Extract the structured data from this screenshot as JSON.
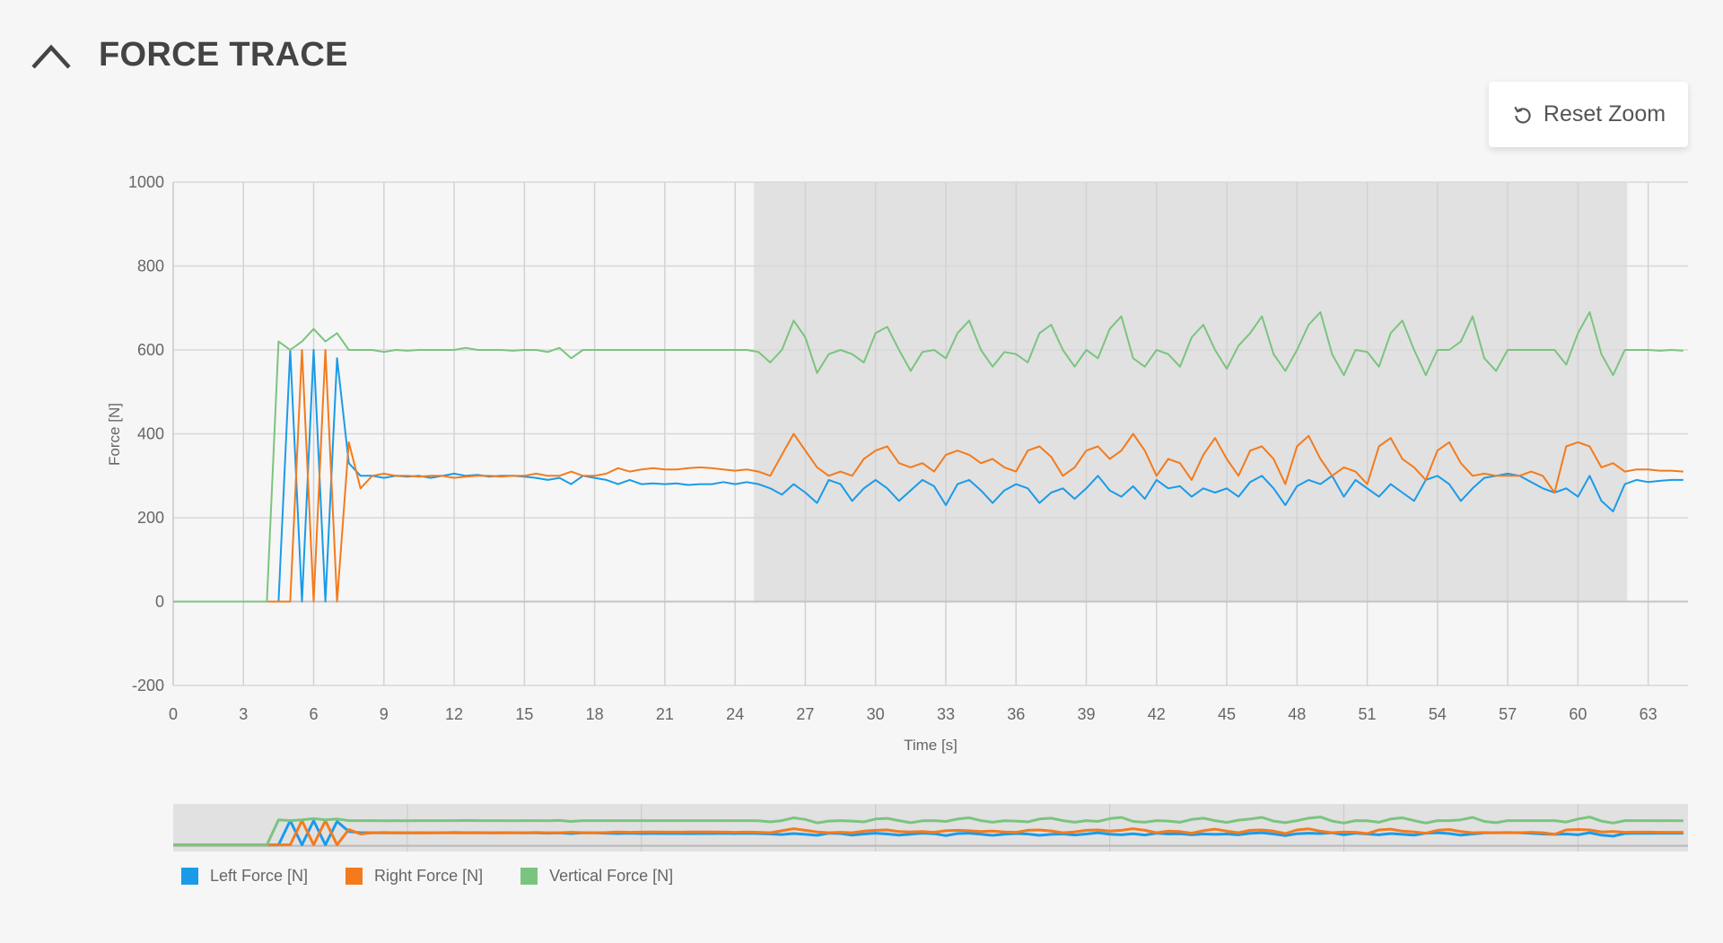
{
  "header": {
    "title": "FORCE TRACE",
    "collapse_icon": "chevron-up-icon"
  },
  "toolbar": {
    "reset_zoom_label": "Reset Zoom",
    "reset_icon": "undo-icon"
  },
  "colors": {
    "left": "#1a9be8",
    "right": "#f37b1d",
    "vertical": "#7bc47f",
    "selection": "#e1e1e1"
  },
  "chart_data": {
    "type": "line",
    "title": "FORCE TRACE",
    "xlabel": "Time [s]",
    "ylabel": "Force [N]",
    "xlim": [
      0,
      64.7
    ],
    "ylim": [
      -200,
      1000
    ],
    "xticks": [
      "0",
      "3",
      "6",
      "9",
      "12",
      "15",
      "18",
      "21",
      "24",
      "27",
      "30",
      "33",
      "36",
      "39",
      "42",
      "45",
      "48",
      "51",
      "54",
      "57",
      "60",
      "63"
    ],
    "yticks": [
      "1000",
      "800",
      "600",
      "400",
      "200",
      "0",
      "-200"
    ],
    "grid": true,
    "selection_range": [
      24.8,
      62.1
    ],
    "legend_position": "bottom-left",
    "x_start": 0,
    "x_step": 0.5,
    "series": [
      {
        "name": "Left Force [N]",
        "values": [
          0,
          0,
          0,
          0,
          0,
          0,
          0,
          0,
          0,
          0,
          600,
          0,
          600,
          0,
          580,
          330,
          300,
          300,
          295,
          300,
          298,
          300,
          295,
          300,
          305,
          300,
          302,
          298,
          300,
          300,
          298,
          295,
          290,
          295,
          280,
          300,
          295,
          290,
          280,
          290,
          280,
          282,
          280,
          282,
          278,
          280,
          280,
          285,
          280,
          285,
          280,
          270,
          255,
          280,
          260,
          235,
          290,
          280,
          240,
          270,
          290,
          270,
          240,
          265,
          290,
          275,
          230,
          280,
          290,
          265,
          235,
          265,
          280,
          270,
          235,
          260,
          270,
          245,
          270,
          300,
          265,
          250,
          275,
          245,
          290,
          270,
          275,
          250,
          270,
          260,
          270,
          250,
          285,
          300,
          270,
          230,
          275,
          290,
          280,
          300,
          250,
          290,
          270,
          250,
          280,
          260,
          240,
          290,
          300,
          280,
          240,
          270,
          295,
          300,
          305,
          300,
          285,
          270,
          260,
          270,
          250,
          300,
          240,
          215,
          280,
          290,
          285,
          288,
          290,
          290
        ]
      },
      {
        "name": "Right Force [N]",
        "values": [
          0,
          0,
          0,
          0,
          0,
          0,
          0,
          0,
          0,
          0,
          0,
          600,
          0,
          600,
          0,
          380,
          270,
          300,
          305,
          300,
          300,
          298,
          300,
          300,
          295,
          298,
          300,
          300,
          298,
          300,
          300,
          305,
          300,
          300,
          310,
          300,
          300,
          305,
          318,
          310,
          315,
          318,
          315,
          315,
          318,
          320,
          318,
          315,
          312,
          315,
          310,
          300,
          350,
          400,
          360,
          320,
          300,
          310,
          300,
          340,
          360,
          370,
          330,
          320,
          330,
          310,
          350,
          360,
          350,
          330,
          340,
          320,
          310,
          360,
          370,
          345,
          300,
          320,
          360,
          370,
          340,
          360,
          400,
          360,
          300,
          340,
          330,
          290,
          350,
          390,
          340,
          300,
          360,
          370,
          340,
          280,
          370,
          395,
          340,
          300,
          320,
          310,
          280,
          370,
          390,
          340,
          320,
          290,
          360,
          380,
          330,
          300,
          305,
          300,
          300,
          300,
          310,
          300,
          260,
          370,
          380,
          370,
          320,
          330,
          310,
          315,
          315,
          312,
          312,
          310
        ]
      },
      {
        "name": "Vertical Force [N]",
        "values": [
          0,
          0,
          0,
          0,
          0,
          0,
          0,
          0,
          0,
          620,
          600,
          620,
          650,
          620,
          640,
          600,
          600,
          600,
          595,
          600,
          598,
          600,
          600,
          600,
          600,
          605,
          600,
          600,
          600,
          598,
          600,
          600,
          595,
          605,
          580,
          600,
          600,
          600,
          600,
          600,
          600,
          600,
          600,
          600,
          600,
          600,
          600,
          600,
          600,
          600,
          595,
          570,
          600,
          670,
          630,
          545,
          590,
          600,
          590,
          570,
          640,
          655,
          600,
          550,
          595,
          600,
          580,
          640,
          670,
          600,
          560,
          595,
          590,
          570,
          640,
          660,
          600,
          560,
          600,
          580,
          650,
          680,
          580,
          560,
          600,
          590,
          560,
          630,
          660,
          600,
          555,
          610,
          640,
          680,
          590,
          550,
          600,
          660,
          690,
          590,
          540,
          600,
          595,
          560,
          640,
          670,
          600,
          540,
          600,
          600,
          620,
          680,
          580,
          550,
          600,
          600,
          600,
          600,
          600,
          565,
          640,
          690,
          590,
          540,
          600,
          600,
          600,
          598,
          600,
          598
        ]
      }
    ]
  }
}
